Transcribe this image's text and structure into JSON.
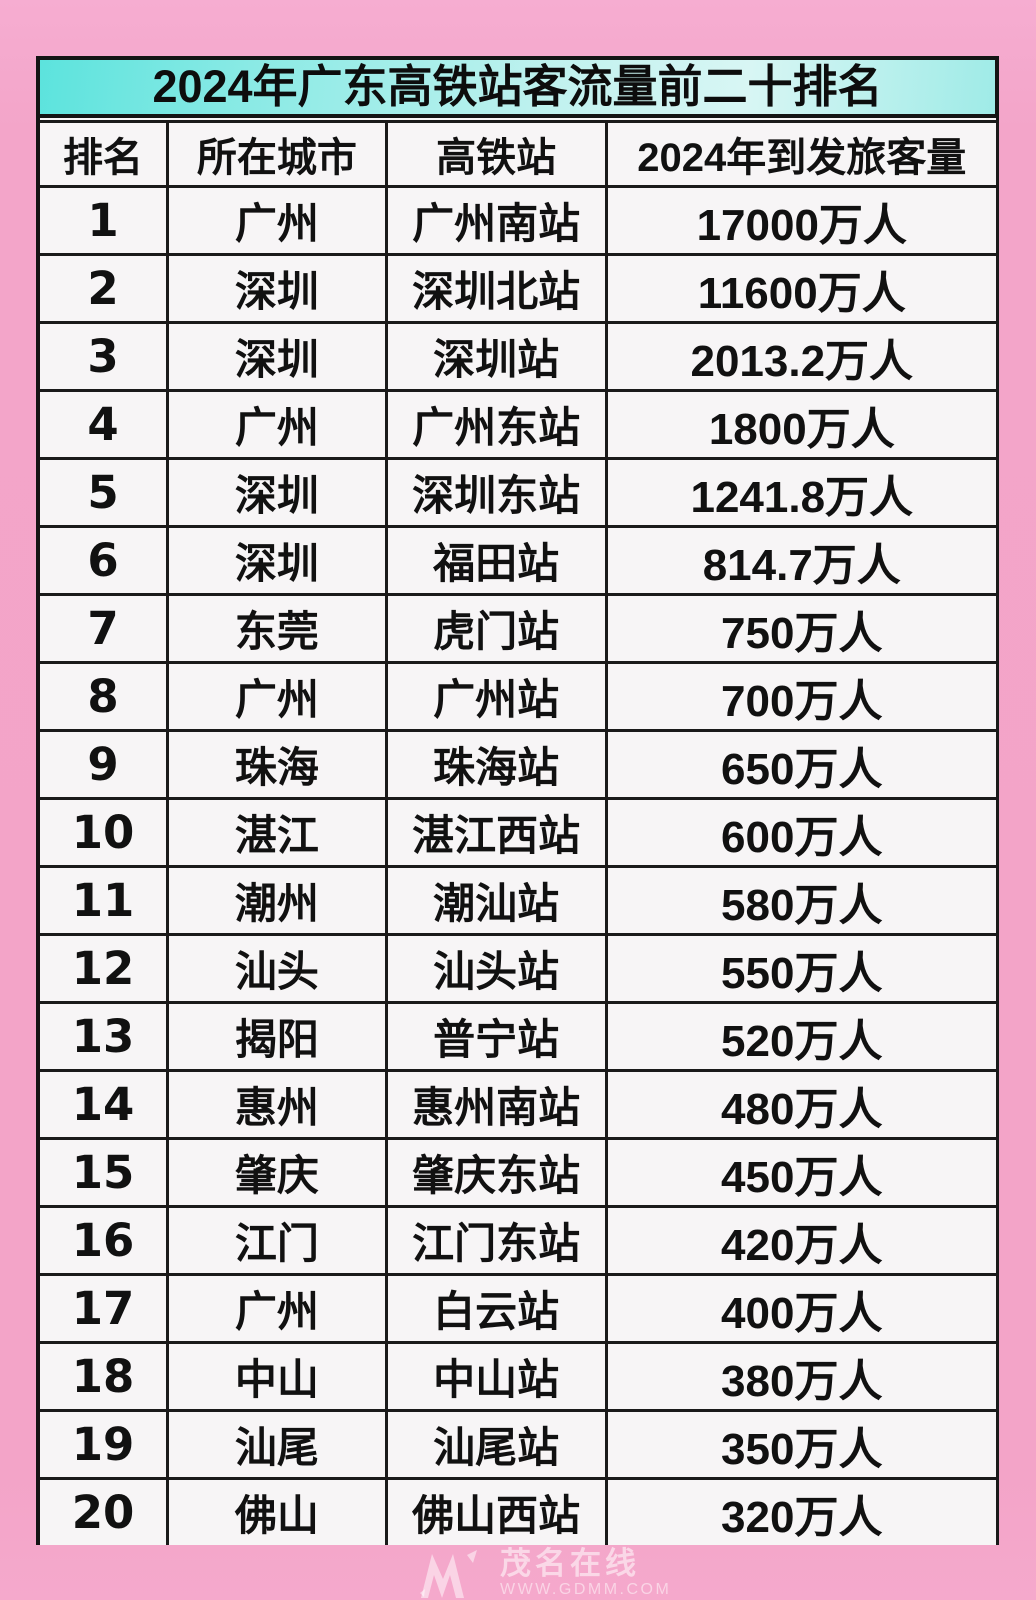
{
  "page": {
    "background_color": "#f3a4c8",
    "table_background": "#f7f5f6",
    "border_color": "#1a1a1a",
    "title_gradient": [
      "#5ce3dd",
      "#c2f2ef",
      "#9febe7"
    ]
  },
  "title": "2024年广东高铁站客流量前二十排名",
  "chart_data": {
    "type": "table",
    "title": "2024年广东高铁站客流量前二十排名",
    "columns": [
      "排名",
      "所在城市",
      "高铁站",
      "2024年到发旅客量"
    ],
    "rows": [
      [
        "1",
        "广州",
        "广州南站",
        "17000万人"
      ],
      [
        "2",
        "深圳",
        "深圳北站",
        "11600万人"
      ],
      [
        "3",
        "深圳",
        "深圳站",
        "2013.2万人"
      ],
      [
        "4",
        "广州",
        "广州东站",
        "1800万人"
      ],
      [
        "5",
        "深圳",
        "深圳东站",
        "1241.8万人"
      ],
      [
        "6",
        "深圳",
        "福田站",
        "814.7万人"
      ],
      [
        "7",
        "东莞",
        "虎门站",
        "750万人"
      ],
      [
        "8",
        "广州",
        "广州站",
        "700万人"
      ],
      [
        "9",
        "珠海",
        "珠海站",
        "650万人"
      ],
      [
        "10",
        "湛江",
        "湛江西站",
        "600万人"
      ],
      [
        "11",
        "潮州",
        "潮汕站",
        "580万人"
      ],
      [
        "12",
        "汕头",
        "汕头站",
        "550万人"
      ],
      [
        "13",
        "揭阳",
        "普宁站",
        "520万人"
      ],
      [
        "14",
        "惠州",
        "惠州南站",
        "480万人"
      ],
      [
        "15",
        "肇庆",
        "肇庆东站",
        "450万人"
      ],
      [
        "16",
        "江门",
        "江门东站",
        "420万人"
      ],
      [
        "17",
        "广州",
        "白云站",
        "400万人"
      ],
      [
        "18",
        "中山",
        "中山站",
        "380万人"
      ],
      [
        "19",
        "汕尾",
        "汕尾站",
        "350万人"
      ],
      [
        "20",
        "佛山",
        "佛山西站",
        "320万人"
      ]
    ]
  },
  "watermark": {
    "logo_icon": "maoming-m-logo",
    "site_name": "茂名在线",
    "site_url": "WWW.GDMM.COM"
  }
}
